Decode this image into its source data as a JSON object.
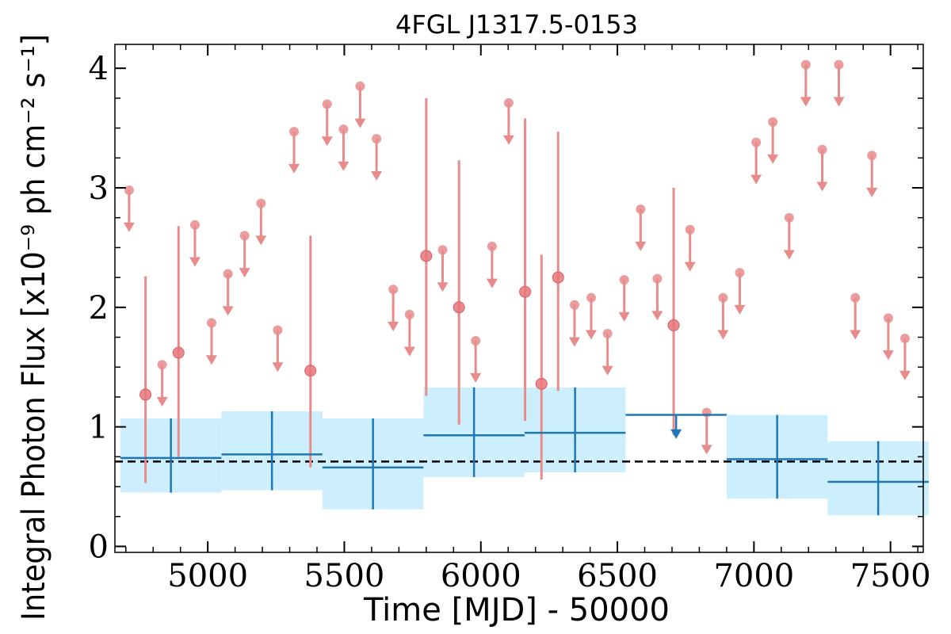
{
  "chart_data": {
    "type": "scatter",
    "title": "4FGL J1317.5-0153",
    "xlabel": "Time [MJD] - 50000",
    "ylabel": "Integral Photon Flux [x10⁻⁹ ph cm⁻² s⁻¹]",
    "xlim": [
      4660,
      7620
    ],
    "ylim": [
      -0.05,
      4.2
    ],
    "xticks": [
      5000,
      5500,
      6000,
      6500,
      7000,
      7500
    ],
    "xtick_labels": [
      "5000",
      "5500",
      "6000",
      "6500",
      "7000",
      "7500"
    ],
    "yticks": [
      0,
      1,
      2,
      3,
      4
    ],
    "ytick_labels": [
      "0",
      "1",
      "2",
      "3",
      "4"
    ],
    "grid": false,
    "legend": "none",
    "colors": {
      "short_bins": "#e88b8b",
      "long_bins": "#1f77b4",
      "uncertainty_band": "#cdeefc",
      "mean_line": "#000000"
    },
    "mean_flux": 0.71,
    "short_bins_upper_limits": [
      {
        "x": 4712,
        "y": 2.98
      },
      {
        "x": 4833,
        "y": 1.52
      },
      {
        "x": 4953,
        "y": 2.69
      },
      {
        "x": 5014,
        "y": 1.87
      },
      {
        "x": 5074,
        "y": 2.28
      },
      {
        "x": 5135,
        "y": 2.6
      },
      {
        "x": 5195,
        "y": 2.87
      },
      {
        "x": 5256,
        "y": 1.81
      },
      {
        "x": 5316,
        "y": 3.47
      },
      {
        "x": 5437,
        "y": 3.7
      },
      {
        "x": 5497,
        "y": 3.49
      },
      {
        "x": 5558,
        "y": 3.85
      },
      {
        "x": 5618,
        "y": 3.41
      },
      {
        "x": 5679,
        "y": 2.15
      },
      {
        "x": 5739,
        "y": 1.94
      },
      {
        "x": 5860,
        "y": 2.48
      },
      {
        "x": 5981,
        "y": 1.72
      },
      {
        "x": 6041,
        "y": 2.51
      },
      {
        "x": 6102,
        "y": 3.71
      },
      {
        "x": 6343,
        "y": 2.02
      },
      {
        "x": 6404,
        "y": 2.08
      },
      {
        "x": 6464,
        "y": 1.78
      },
      {
        "x": 6525,
        "y": 2.23
      },
      {
        "x": 6585,
        "y": 2.82
      },
      {
        "x": 6646,
        "y": 2.24
      },
      {
        "x": 6766,
        "y": 2.65
      },
      {
        "x": 6827,
        "y": 1.12
      },
      {
        "x": 6887,
        "y": 2.08
      },
      {
        "x": 6948,
        "y": 2.29
      },
      {
        "x": 7008,
        "y": 3.38
      },
      {
        "x": 7069,
        "y": 3.55
      },
      {
        "x": 7129,
        "y": 2.75
      },
      {
        "x": 7190,
        "y": 4.03
      },
      {
        "x": 7250,
        "y": 3.32
      },
      {
        "x": 7311,
        "y": 4.03
      },
      {
        "x": 7371,
        "y": 2.08
      },
      {
        "x": 7432,
        "y": 3.27
      },
      {
        "x": 7492,
        "y": 1.91
      },
      {
        "x": 7553,
        "y": 1.74
      }
    ],
    "short_bins_detections": [
      {
        "x": 4772,
        "y": 1.27,
        "ylow": 0.53,
        "yhigh": 2.26
      },
      {
        "x": 4893,
        "y": 1.62,
        "ylow": 0.75,
        "yhigh": 2.68
      },
      {
        "x": 5376,
        "y": 1.47,
        "ylow": 0.66,
        "yhigh": 2.6
      },
      {
        "x": 5800,
        "y": 2.43,
        "ylow": 1.26,
        "yhigh": 3.75
      },
      {
        "x": 5920,
        "y": 2.0,
        "ylow": 1.02,
        "yhigh": 3.23
      },
      {
        "x": 6162,
        "y": 2.13,
        "ylow": 1.05,
        "yhigh": 3.58
      },
      {
        "x": 6222,
        "y": 1.36,
        "ylow": 0.56,
        "yhigh": 2.44
      },
      {
        "x": 6283,
        "y": 2.25,
        "ylow": 1.3,
        "yhigh": 3.47
      },
      {
        "x": 6706,
        "y": 1.85,
        "ylow": 0.93,
        "yhigh": 3.0
      }
    ],
    "long_bins": [
      {
        "x0": 4680,
        "x1": 5050,
        "x": 4865,
        "y": 0.74,
        "ylow": 0.45,
        "yhigh": 1.07
      },
      {
        "x0": 5050,
        "x1": 5420,
        "x": 5235,
        "y": 0.77,
        "ylow": 0.47,
        "yhigh": 1.13
      },
      {
        "x0": 5420,
        "x1": 5790,
        "x": 5605,
        "y": 0.66,
        "ylow": 0.31,
        "yhigh": 1.07
      },
      {
        "x0": 5790,
        "x1": 6160,
        "x": 5975,
        "y": 0.93,
        "ylow": 0.58,
        "yhigh": 1.33
      },
      {
        "x0": 6160,
        "x1": 6530,
        "x": 6345,
        "y": 0.95,
        "ylow": 0.62,
        "yhigh": 1.33
      },
      {
        "x0": 6900,
        "x1": 7270,
        "x": 7085,
        "y": 0.73,
        "ylow": 0.4,
        "yhigh": 1.1
      },
      {
        "x0": 7270,
        "x1": 7640,
        "x": 7455,
        "y": 0.54,
        "ylow": 0.26,
        "yhigh": 0.88
      }
    ],
    "long_bins_upper_limits": [
      {
        "x0": 6530,
        "x1": 6900,
        "x": 6715,
        "y": 1.1
      }
    ]
  }
}
